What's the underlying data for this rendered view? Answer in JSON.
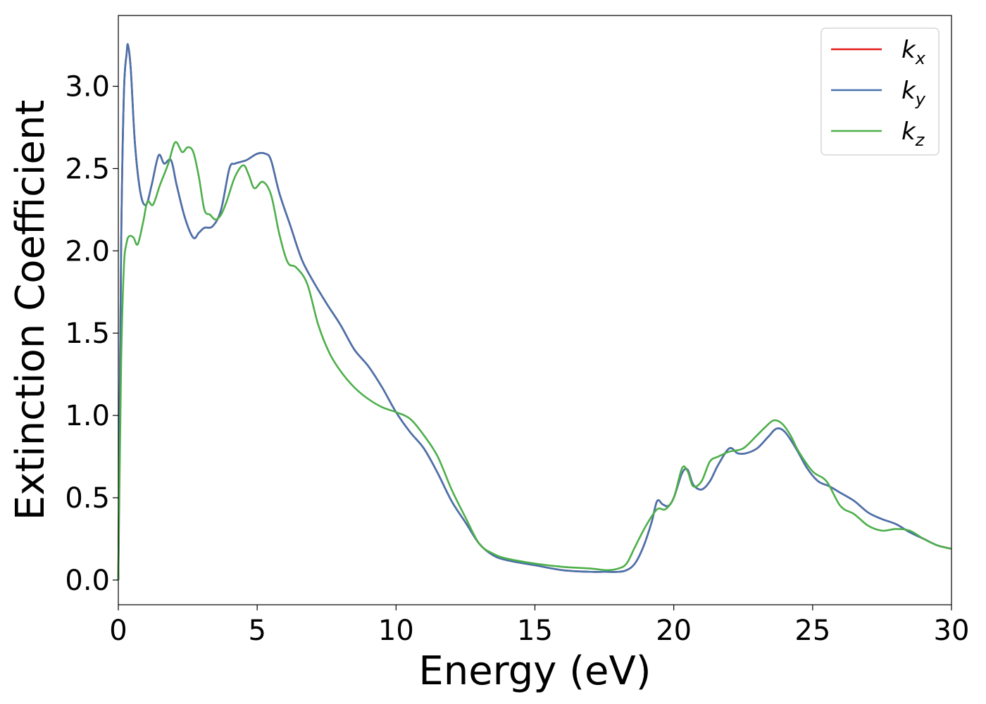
{
  "chart_data": {
    "type": "line",
    "title": "",
    "xlabel": "Energy (eV)",
    "ylabel": "Extinction Coefficient",
    "xlim": [
      0,
      30
    ],
    "ylim": [
      -0.15,
      3.43
    ],
    "xticks": [
      0,
      5,
      10,
      15,
      20,
      25,
      30
    ],
    "xtick_labels": [
      "0",
      "5",
      "10",
      "15",
      "20",
      "25",
      "30"
    ],
    "yticks": [
      0.0,
      0.5,
      1.0,
      1.5,
      2.0,
      2.5,
      3.0
    ],
    "ytick_labels": [
      "0.0",
      "0.5",
      "1.0",
      "1.5",
      "2.0",
      "2.5",
      "3.0"
    ],
    "grid": false,
    "legend": {
      "position": "top-right"
    },
    "series": [
      {
        "name": "k",
        "sub": "x",
        "color": "#e41a1c",
        "x": [
          0,
          0.1,
          0.2,
          0.3,
          0.35,
          0.45,
          0.6,
          0.8,
          1.0,
          1.2,
          1.45,
          1.65,
          1.9,
          2.1,
          2.4,
          2.7,
          2.9,
          3.1,
          3.4,
          3.7,
          4.0,
          4.2,
          4.6,
          5.0,
          5.3,
          5.5,
          5.8,
          6.2,
          6.6,
          7.0,
          7.5,
          8.0,
          8.5,
          9.0,
          9.5,
          10.0,
          10.5,
          11.0,
          11.5,
          12.0,
          12.5,
          13.0,
          13.5,
          14.0,
          15.0,
          16.0,
          17.0,
          17.5,
          18.0,
          18.3,
          18.6,
          18.9,
          19.2,
          19.4,
          19.6,
          19.8,
          20.0,
          20.3,
          20.5,
          20.7,
          21.0,
          21.3,
          21.6,
          22.0,
          22.3,
          22.6,
          23.0,
          23.4,
          23.7,
          24.0,
          24.4,
          24.8,
          25.2,
          25.6,
          26.0,
          26.5,
          27.0,
          27.5,
          28.0,
          28.5,
          29.0,
          29.5,
          30.0
        ],
        "values": [
          0,
          2.0,
          2.95,
          3.2,
          3.25,
          3.1,
          2.65,
          2.35,
          2.28,
          2.4,
          2.58,
          2.53,
          2.55,
          2.4,
          2.2,
          2.08,
          2.11,
          2.14,
          2.15,
          2.25,
          2.5,
          2.53,
          2.55,
          2.59,
          2.59,
          2.55,
          2.35,
          2.15,
          1.95,
          1.82,
          1.68,
          1.55,
          1.4,
          1.3,
          1.17,
          1.02,
          0.9,
          0.8,
          0.65,
          0.48,
          0.35,
          0.22,
          0.15,
          0.12,
          0.09,
          0.06,
          0.05,
          0.05,
          0.05,
          0.06,
          0.1,
          0.2,
          0.35,
          0.48,
          0.46,
          0.45,
          0.5,
          0.65,
          0.67,
          0.58,
          0.55,
          0.6,
          0.7,
          0.8,
          0.77,
          0.77,
          0.8,
          0.87,
          0.92,
          0.9,
          0.8,
          0.68,
          0.6,
          0.57,
          0.53,
          0.48,
          0.41,
          0.37,
          0.34,
          0.29,
          0.25,
          0.21,
          0.19
        ]
      },
      {
        "name": "k",
        "sub": "y",
        "color": "#4673ae",
        "x": [
          0,
          0.1,
          0.2,
          0.3,
          0.35,
          0.45,
          0.6,
          0.8,
          1.0,
          1.2,
          1.45,
          1.65,
          1.9,
          2.1,
          2.4,
          2.7,
          2.9,
          3.1,
          3.4,
          3.7,
          4.0,
          4.2,
          4.6,
          5.0,
          5.3,
          5.5,
          5.8,
          6.2,
          6.6,
          7.0,
          7.5,
          8.0,
          8.5,
          9.0,
          9.5,
          10.0,
          10.5,
          11.0,
          11.5,
          12.0,
          12.5,
          13.0,
          13.5,
          14.0,
          15.0,
          16.0,
          17.0,
          17.5,
          18.0,
          18.3,
          18.6,
          18.9,
          19.2,
          19.4,
          19.6,
          19.8,
          20.0,
          20.3,
          20.5,
          20.7,
          21.0,
          21.3,
          21.6,
          22.0,
          22.3,
          22.6,
          23.0,
          23.4,
          23.7,
          24.0,
          24.4,
          24.8,
          25.2,
          25.6,
          26.0,
          26.5,
          27.0,
          27.5,
          28.0,
          28.5,
          29.0,
          29.5,
          30.0
        ],
        "values": [
          0,
          2.0,
          2.95,
          3.2,
          3.25,
          3.1,
          2.65,
          2.35,
          2.28,
          2.4,
          2.58,
          2.53,
          2.55,
          2.4,
          2.2,
          2.08,
          2.11,
          2.14,
          2.15,
          2.25,
          2.5,
          2.53,
          2.55,
          2.59,
          2.59,
          2.55,
          2.35,
          2.15,
          1.95,
          1.82,
          1.68,
          1.55,
          1.4,
          1.3,
          1.17,
          1.02,
          0.9,
          0.8,
          0.65,
          0.48,
          0.35,
          0.22,
          0.15,
          0.12,
          0.09,
          0.06,
          0.05,
          0.05,
          0.05,
          0.06,
          0.1,
          0.2,
          0.35,
          0.48,
          0.46,
          0.45,
          0.5,
          0.65,
          0.67,
          0.58,
          0.55,
          0.6,
          0.7,
          0.8,
          0.77,
          0.77,
          0.8,
          0.87,
          0.92,
          0.9,
          0.8,
          0.68,
          0.6,
          0.57,
          0.53,
          0.48,
          0.41,
          0.37,
          0.34,
          0.29,
          0.25,
          0.21,
          0.19
        ]
      },
      {
        "name": "k",
        "sub": "z",
        "color": "#4daf4a",
        "x": [
          0,
          0.1,
          0.2,
          0.3,
          0.4,
          0.55,
          0.7,
          0.9,
          1.05,
          1.25,
          1.5,
          1.8,
          2.05,
          2.3,
          2.5,
          2.7,
          2.9,
          3.1,
          3.3,
          3.5,
          3.7,
          3.9,
          4.2,
          4.5,
          4.7,
          4.9,
          5.2,
          5.5,
          5.8,
          6.1,
          6.4,
          6.8,
          7.2,
          7.6,
          8.0,
          8.5,
          9.0,
          9.5,
          10.0,
          10.5,
          11.0,
          11.5,
          12.0,
          12.5,
          13.0,
          13.5,
          14.0,
          15.0,
          16.0,
          17.0,
          17.6,
          18.0,
          18.3,
          18.6,
          19.0,
          19.4,
          19.7,
          20.0,
          20.3,
          20.5,
          20.7,
          21.0,
          21.3,
          21.6,
          22.0,
          22.5,
          23.0,
          23.3,
          23.6,
          23.9,
          24.2,
          24.5,
          25.0,
          25.5,
          26.0,
          26.5,
          27.0,
          27.5,
          28.0,
          28.5,
          29.0,
          29.5,
          30.0
        ],
        "values": [
          0,
          1.3,
          1.9,
          2.05,
          2.09,
          2.08,
          2.04,
          2.18,
          2.3,
          2.28,
          2.4,
          2.53,
          2.66,
          2.6,
          2.63,
          2.6,
          2.45,
          2.25,
          2.22,
          2.19,
          2.22,
          2.3,
          2.45,
          2.52,
          2.46,
          2.38,
          2.42,
          2.34,
          2.1,
          1.93,
          1.9,
          1.8,
          1.55,
          1.38,
          1.27,
          1.17,
          1.1,
          1.05,
          1.02,
          0.98,
          0.88,
          0.75,
          0.55,
          0.38,
          0.22,
          0.16,
          0.13,
          0.1,
          0.08,
          0.07,
          0.06,
          0.07,
          0.1,
          0.2,
          0.33,
          0.43,
          0.43,
          0.5,
          0.68,
          0.66,
          0.57,
          0.6,
          0.72,
          0.75,
          0.78,
          0.8,
          0.88,
          0.93,
          0.97,
          0.95,
          0.88,
          0.78,
          0.66,
          0.6,
          0.45,
          0.4,
          0.33,
          0.3,
          0.31,
          0.3,
          0.25,
          0.21,
          0.19
        ]
      }
    ]
  }
}
